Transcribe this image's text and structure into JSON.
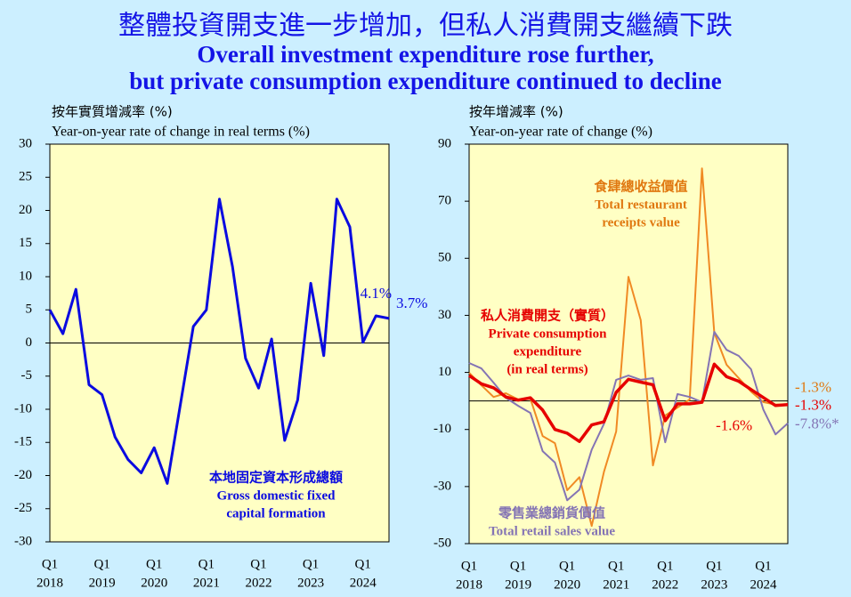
{
  "title": {
    "zh": "整體投資開支進一步增加，但私人消費開支繼續下跌",
    "en": [
      "Overall investment expenditure rose further,",
      "but private consumption expenditure continued to decline"
    ]
  },
  "chart_data": [
    {
      "type": "line",
      "ylabel_zh": "按年實質增減率 (%)",
      "ylabel": "Year-on-year rate of change in real terms (%)",
      "categories": [
        {
          "quarter": "Q1",
          "year": "2018"
        },
        null,
        null,
        null,
        {
          "quarter": "Q1",
          "year": "2019"
        },
        null,
        null,
        null,
        {
          "quarter": "Q1",
          "year": "2020"
        },
        null,
        null,
        null,
        {
          "quarter": "Q1",
          "year": "2021"
        },
        null,
        null,
        null,
        {
          "quarter": "Q1",
          "year": "2022"
        },
        null,
        null,
        null,
        {
          "quarter": "Q1",
          "year": "2023"
        },
        null,
        null,
        null,
        {
          "quarter": "Q1",
          "year": "2024"
        },
        null,
        null
      ],
      "ylim": [
        -30,
        30
      ],
      "yticks": [
        -30,
        -25,
        -20,
        -15,
        -10,
        -5,
        0,
        5,
        10,
        15,
        20,
        25,
        30
      ],
      "series": [
        {
          "name": "本地固定資本形成總額",
          "name_en": [
            "Gross domestic fixed",
            "capital formation"
          ],
          "color": "#0a0ae0",
          "values": [
            5.0,
            1.4,
            8.1,
            -6.3,
            -7.8,
            -14.2,
            -17.6,
            -19.6,
            -15.8,
            -21.2,
            -9.4,
            2.5,
            5.0,
            21.7,
            11.5,
            -2.3,
            -6.8,
            0.6,
            -14.7,
            -8.6,
            9.0,
            -1.9,
            21.7,
            17.5,
            0.1,
            4.1,
            3.7
          ],
          "value_labels": [
            null,
            null,
            null,
            null,
            null,
            null,
            null,
            null,
            null,
            null,
            null,
            null,
            null,
            null,
            null,
            null,
            null,
            null,
            null,
            null,
            null,
            null,
            null,
            null,
            null,
            "4.1%",
            "3.7%"
          ]
        }
      ]
    },
    {
      "type": "line",
      "ylabel_zh": "按年增減率 (%)",
      "ylabel": "Year-on-year rate of change (%)",
      "categories": [
        {
          "quarter": "Q1",
          "year": "2018"
        },
        null,
        null,
        null,
        {
          "quarter": "Q1",
          "year": "2019"
        },
        null,
        null,
        null,
        {
          "quarter": "Q1",
          "year": "2020"
        },
        null,
        null,
        null,
        {
          "quarter": "Q1",
          "year": "2021"
        },
        null,
        null,
        null,
        {
          "quarter": "Q1",
          "year": "2022"
        },
        null,
        null,
        null,
        {
          "quarter": "Q1",
          "year": "2023"
        },
        null,
        null,
        null,
        {
          "quarter": "Q1",
          "year": "2024"
        },
        null,
        null
      ],
      "ylim": [
        -50,
        90
      ],
      "yticks": [
        -50,
        -30,
        -10,
        10,
        30,
        50,
        70,
        90
      ],
      "series": [
        {
          "name": "食肆總收益價值",
          "name_en": [
            "Total restaurant",
            "receipts value"
          ],
          "color": "#f08a24",
          "values": [
            9.9,
            5.5,
            1.4,
            2.7,
            0.5,
            0.8,
            -12.3,
            -14.8,
            -31.3,
            -26.7,
            -43.8,
            -24.8,
            -10.7,
            43.5,
            28.3,
            -22.6,
            -5.1,
            -2.3,
            0.5,
            81.5,
            23.9,
            12.7,
            8.0,
            3.3,
            -0.4,
            -1.3,
            -1.3
          ],
          "value_labels": [
            null,
            null,
            null,
            null,
            null,
            null,
            null,
            null,
            null,
            null,
            null,
            null,
            null,
            null,
            null,
            null,
            null,
            null,
            null,
            null,
            null,
            null,
            null,
            null,
            null,
            null,
            "-1.3%"
          ]
        },
        {
          "name": "零售業總銷貨價值",
          "name_en": [
            "Total retail sales value"
          ],
          "color": "#8474b4",
          "values": [
            13.3,
            11.4,
            6.4,
            1.1,
            -1.7,
            -4.2,
            -17.6,
            -21.6,
            -34.8,
            -31.1,
            -17.1,
            -8.0,
            7.4,
            8.9,
            7.4,
            8.0,
            -14.5,
            2.4,
            1.4,
            -0.4,
            24.2,
            17.9,
            15.8,
            11.1,
            -3.0,
            -11.7,
            -7.8
          ],
          "value_labels": [
            null,
            null,
            null,
            null,
            null,
            null,
            null,
            null,
            null,
            null,
            null,
            null,
            null,
            null,
            null,
            null,
            null,
            null,
            null,
            null,
            null,
            null,
            null,
            null,
            null,
            null,
            "-7.8%*"
          ]
        },
        {
          "name": "私人消費開支（實質）",
          "name_en": [
            "Private consumption",
            "expenditure",
            "(in real terms)"
          ],
          "color": "#e60000",
          "values": [
            8.9,
            6.0,
            4.6,
            1.4,
            0.3,
            1.1,
            -3.2,
            -10.0,
            -11.3,
            -14.2,
            -8.4,
            -7.3,
            3.0,
            7.6,
            6.6,
            5.7,
            -6.9,
            -1.0,
            -1.0,
            -0.5,
            12.9,
            8.5,
            6.9,
            4.0,
            1.2,
            -1.6,
            -1.3
          ],
          "value_labels": [
            null,
            null,
            null,
            null,
            null,
            null,
            null,
            null,
            null,
            null,
            null,
            null,
            null,
            null,
            null,
            null,
            null,
            null,
            null,
            null,
            null,
            null,
            null,
            null,
            null,
            "-1.6%",
            "-1.3%"
          ]
        }
      ]
    }
  ]
}
